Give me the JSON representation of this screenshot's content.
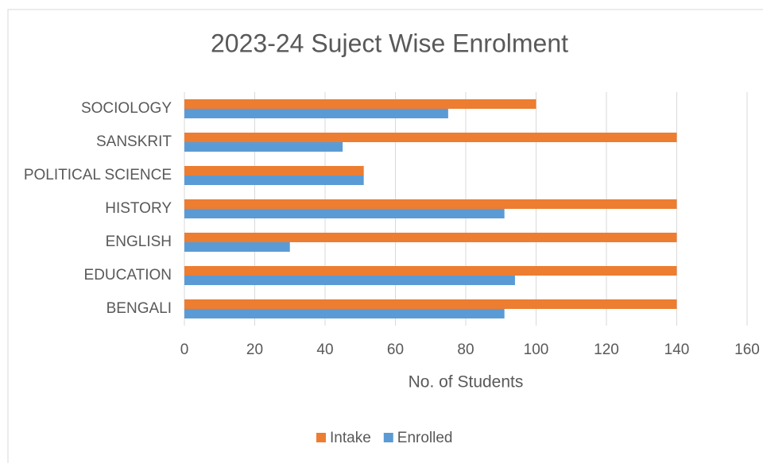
{
  "chart_data": {
    "type": "hbar",
    "title": "2023-24 Suject Wise Enrolment",
    "categories": [
      "BENGALI",
      "EDUCATION",
      "ENGLISH",
      "HISTORY",
      "POLITICAL SCIENCE",
      "SANSKRIT",
      "SOCIOLOGY"
    ],
    "series": [
      {
        "name": "Intake",
        "color": "#ed7d31",
        "values": [
          140,
          140,
          140,
          140,
          51,
          140,
          100
        ]
      },
      {
        "name": "Enrolled",
        "color": "#5b9bd5",
        "values": [
          91,
          94,
          30,
          91,
          51,
          45,
          75
        ]
      }
    ],
    "xlabel": "No. of Students",
    "xlim": [
      0,
      160
    ],
    "xticks": [
      0,
      20,
      40,
      60,
      80,
      100,
      120,
      140,
      160
    ],
    "grid": true,
    "legend": "bottom"
  }
}
